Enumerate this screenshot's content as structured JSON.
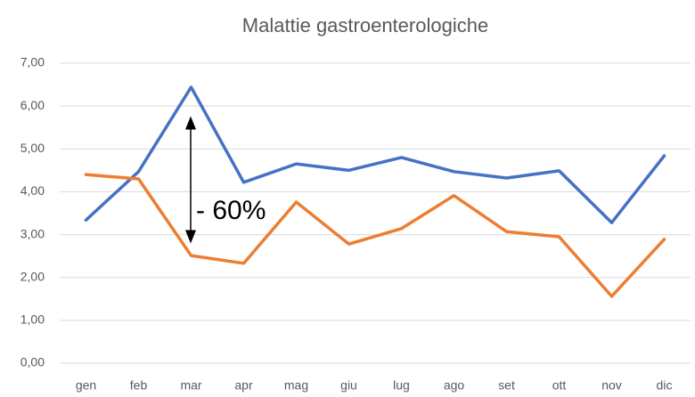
{
  "chart_data": {
    "type": "line",
    "title": "Malattie gastroenterologiche",
    "annotation": "- 60%",
    "categories": [
      "gen",
      "feb",
      "mar",
      "apr",
      "mag",
      "giu",
      "lug",
      "ago",
      "set",
      "ott",
      "nov",
      "dic"
    ],
    "series": [
      {
        "color": "#4472c4",
        "values": [
          3.34,
          4.47,
          6.44,
          4.22,
          4.65,
          4.5,
          4.8,
          4.47,
          4.32,
          4.49,
          3.28,
          4.84
        ]
      },
      {
        "color": "#ed7d31",
        "values": [
          4.4,
          4.3,
          2.51,
          2.33,
          3.76,
          2.78,
          3.14,
          3.91,
          3.07,
          2.95,
          1.56,
          2.89
        ]
      }
    ],
    "ylim": [
      0,
      7
    ],
    "yticks": [
      {
        "value": 0,
        "label": "0,00"
      },
      {
        "value": 1,
        "label": "1,00"
      },
      {
        "value": 2,
        "label": "2,00"
      },
      {
        "value": 3,
        "label": "3,00"
      },
      {
        "value": 4,
        "label": "4,00"
      },
      {
        "value": 5,
        "label": "5,00"
      },
      {
        "value": 6,
        "label": "6,00"
      },
      {
        "value": 7,
        "label": "7,00"
      }
    ],
    "grid": true
  }
}
